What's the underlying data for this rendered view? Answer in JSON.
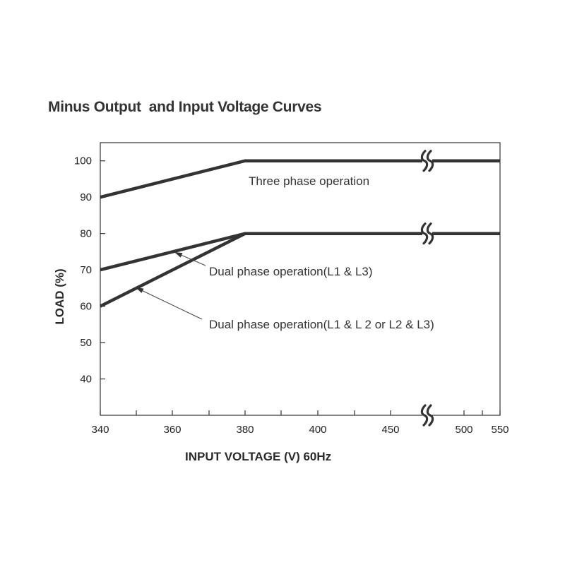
{
  "chart_data": {
    "type": "line",
    "title": "Minus Output  and Input Voltage Curves",
    "xlabel": "INPUT VOLTAGE (V) 60Hz",
    "ylabel": "LOAD (%)",
    "x_tick_labels": [
      "340",
      "360",
      "380",
      "400",
      "450",
      "500",
      "550"
    ],
    "x_minor_ticks": [
      "350",
      "370",
      "390",
      "425",
      "475",
      "525"
    ],
    "y_ticks": [
      40,
      50,
      60,
      70,
      80,
      90,
      100
    ],
    "ylim": [
      30,
      105
    ],
    "axis_break_x": "475",
    "grid": false,
    "series": [
      {
        "name": "Three phase operation",
        "points": [
          [
            "340",
            90
          ],
          [
            "380",
            100
          ],
          [
            "550",
            100
          ]
        ]
      },
      {
        "name": "Dual phase operation(L1 & L3)",
        "points": [
          [
            "340",
            70
          ],
          [
            "380",
            80
          ],
          [
            "550",
            80
          ]
        ]
      },
      {
        "name": "Dual phase operation(L1 & L 2 or L2 &  L3)",
        "points": [
          [
            "340",
            60
          ],
          [
            "380",
            80
          ],
          [
            "550",
            80
          ]
        ]
      }
    ],
    "colors": {
      "line": "#333333",
      "axis": "#333333"
    }
  }
}
